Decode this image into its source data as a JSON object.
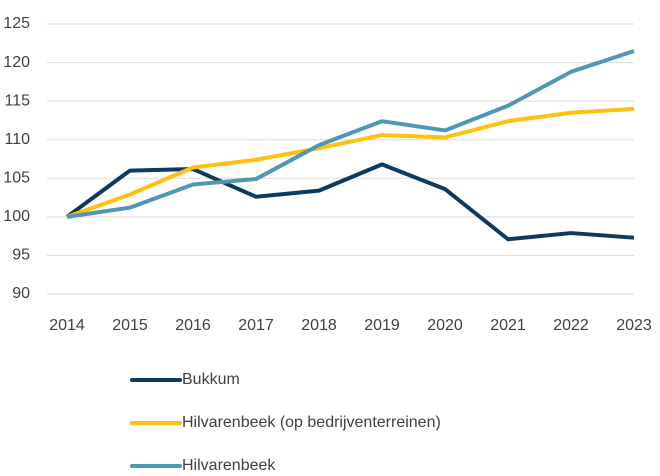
{
  "chart_data": {
    "type": "line",
    "x": [
      2014,
      2015,
      2016,
      2017,
      2018,
      2019,
      2020,
      2021,
      2022,
      2023
    ],
    "xlim": [
      2014,
      2023
    ],
    "xticks": [
      2014,
      2015,
      2016,
      2017,
      2018,
      2019,
      2020,
      2021,
      2022,
      2023
    ],
    "ylim": [
      90,
      125
    ],
    "yticks": [
      90,
      95,
      100,
      105,
      110,
      115,
      120,
      125
    ],
    "grid": true,
    "legend": "bottom",
    "series": [
      {
        "name": "Bukkum",
        "color": "#0e3a5e",
        "values": [
          100,
          106,
          106.2,
          102.6,
          103.4,
          106.8,
          103.6,
          97.1,
          97.9,
          97.3
        ]
      },
      {
        "name": "Hilvarenbeek (op bedrijventerreinen)",
        "color": "#ffc10e",
        "values": [
          100,
          102.9,
          106.4,
          107.4,
          108.9,
          110.6,
          110.3,
          112.4,
          113.5,
          114.0
        ]
      },
      {
        "name": "Hilvarenbeek",
        "color": "#4f97b5",
        "values": [
          100,
          101.2,
          104.2,
          104.9,
          109.3,
          112.4,
          111.2,
          114.4,
          118.8,
          121.5
        ]
      }
    ]
  }
}
